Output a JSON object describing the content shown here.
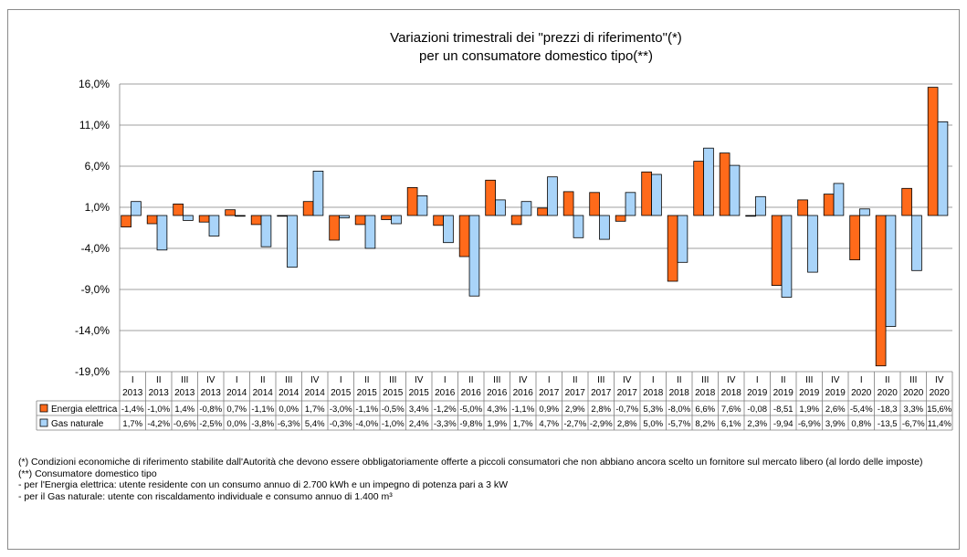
{
  "chart_data": {
    "type": "bar",
    "title_line1": "Variazioni trimestrali dei \"prezzi di riferimento\"(*)",
    "title_line2": "per un consumatore domestico tipo(**)",
    "ylim": [
      -19.0,
      16.0
    ],
    "yticks": [
      16.0,
      11.0,
      6.0,
      1.0,
      -4.0,
      -9.0,
      -14.0,
      -19.0
    ],
    "ytick_labels": [
      "16,0%",
      "11,0%",
      "6,0%",
      "1,0%",
      "-4,0%",
      "-9,0%",
      "-14,0%",
      "-19,0%"
    ],
    "grid": true,
    "legend": "data-table",
    "quarters": [
      "I",
      "II",
      "III",
      "IV",
      "I",
      "II",
      "III",
      "IV",
      "I",
      "II",
      "III",
      "IV",
      "I",
      "II",
      "III",
      "IV",
      "I",
      "II",
      "III",
      "IV",
      "I",
      "II",
      "III",
      "IV",
      "I",
      "II",
      "III",
      "IV",
      "I",
      "II",
      "III",
      "IV"
    ],
    "years": [
      "2013",
      "2013",
      "2013",
      "2013",
      "2014",
      "2014",
      "2014",
      "2014",
      "2015",
      "2015",
      "2015",
      "2015",
      "2016",
      "2016",
      "2016",
      "2016",
      "2017",
      "2017",
      "2017",
      "2017",
      "2018",
      "2018",
      "2018",
      "2018",
      "2019",
      "2019",
      "2019",
      "2019",
      "2020",
      "2020",
      "2020",
      "2020"
    ],
    "series": [
      {
        "name": "Energia elettrica",
        "color": "#FF6A1A",
        "values": [
          -1.4,
          -1.0,
          1.4,
          -0.8,
          0.7,
          -1.1,
          0.0,
          1.7,
          -3.0,
          -1.1,
          -0.5,
          3.4,
          -1.2,
          -5.0,
          4.3,
          -1.1,
          0.9,
          2.9,
          2.8,
          -0.7,
          5.3,
          -8.0,
          6.6,
          7.6,
          -0.08,
          -8.51,
          1.9,
          2.6,
          -5.4,
          -18.3,
          3.3,
          15.6
        ],
        "labels": [
          "-1,4%",
          "-1,0%",
          "1,4%",
          "-0,8%",
          "0,7%",
          "-1,1%",
          "0,0%",
          "1,7%",
          "-3,0%",
          "-1,1%",
          "-0,5%",
          "3,4%",
          "-1,2%",
          "-5,0%",
          "4,3%",
          "-1,1%",
          "0,9%",
          "2,9%",
          "2,8%",
          "-0,7%",
          "5,3%",
          "-8,0%",
          "6,6%",
          "7,6%",
          "-0,08",
          "-8,51",
          "1,9%",
          "2,6%",
          "-5,4%",
          "-18,3",
          "3,3%",
          "15,6%"
        ]
      },
      {
        "name": "Gas naturale",
        "color": "#A9D4F9",
        "values": [
          1.7,
          -4.2,
          -0.6,
          -2.5,
          0.0,
          -3.8,
          -6.3,
          5.4,
          -0.3,
          -4.0,
          -1.0,
          2.4,
          -3.3,
          -9.8,
          1.9,
          1.7,
          4.7,
          -2.7,
          -2.9,
          2.8,
          5.0,
          -5.7,
          8.2,
          6.1,
          2.3,
          -9.94,
          -6.9,
          3.9,
          0.8,
          -13.5,
          -6.7,
          11.4
        ],
        "labels": [
          "1,7%",
          "-4,2%",
          "-0,6%",
          "-2,5%",
          "0,0%",
          "-3,8%",
          "-6,3%",
          "5,4%",
          "-0,3%",
          "-4,0%",
          "-1,0%",
          "2,4%",
          "-3,3%",
          "-9,8%",
          "1,9%",
          "1,7%",
          "4,7%",
          "-2,7%",
          "-2,9%",
          "2,8%",
          "5,0%",
          "-5,7%",
          "8,2%",
          "6,1%",
          "2,3%",
          "-9,94",
          "-6,9%",
          "3,9%",
          "0,8%",
          "-13,5",
          "-6,7%",
          "11,4%"
        ]
      }
    ]
  },
  "notes": {
    "note1": "(*) Condizioni economiche di riferimento stabilite dall'Autorità che devono essere obbligatoriamente offerte a piccoli consumatori che non abbiano ancora scelto un fornitore sul mercato libero (al lordo delle imposte)",
    "note2": "(**) Consumatore domestico tipo",
    "note3": "- per l'Energia elettrica: utente residente con un consumo annuo di 2.700 kWh e un impegno di potenza pari a 3 kW",
    "note4": "- per il Gas naturale: utente con riscaldamento individuale e consumo annuo di 1.400 m³"
  }
}
